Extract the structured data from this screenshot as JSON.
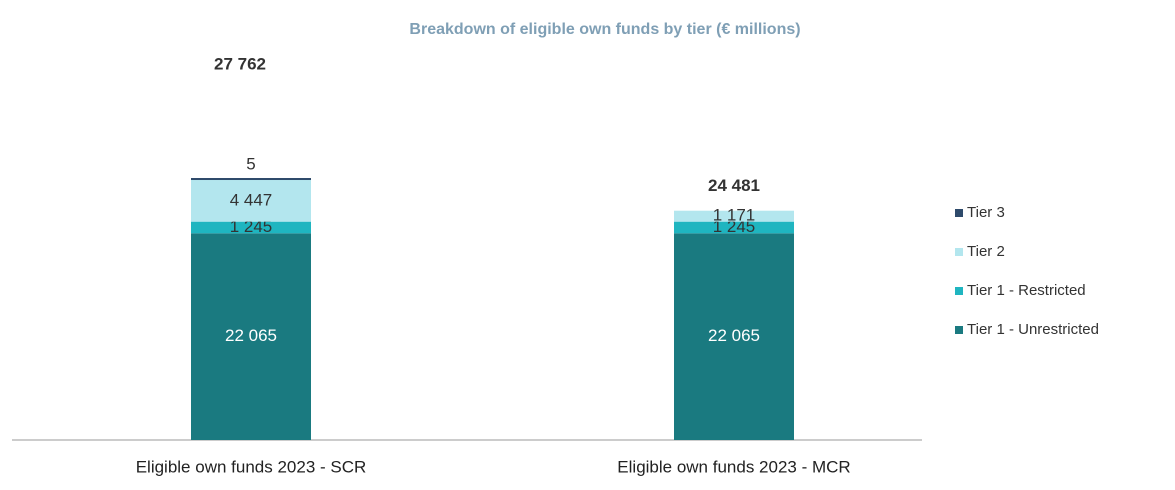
{
  "chart_data": {
    "type": "stacked_bar",
    "title": "Breakdown of eligible own funds by tier (€ millions)",
    "categories": [
      "Eligible own funds 2023 - SCR",
      "Eligible own funds 2023 - MCR"
    ],
    "series": [
      {
        "name": "Tier 1 - Unrestricted",
        "color": "#1a7a80",
        "values": [
          22065,
          22065
        ],
        "value_labels": [
          "22 065",
          "22 065"
        ]
      },
      {
        "name": "Tier 1 - Restricted",
        "color": "#1fb5c0",
        "values": [
          1245,
          1245
        ],
        "value_labels": [
          "1 245",
          "1 245"
        ]
      },
      {
        "name": "Tier 2",
        "color": "#b3e6ee",
        "values": [
          4447,
          1171
        ],
        "value_labels": [
          "4 447",
          "1 171"
        ]
      },
      {
        "name": "Tier 3",
        "color": "#2e4a6b",
        "values": [
          5,
          null
        ],
        "value_labels": [
          "5",
          null
        ]
      }
    ],
    "totals": [
      27762,
      24481
    ],
    "total_labels": [
      "27 762",
      "24 481"
    ],
    "ylim": [
      0,
      30000
    ],
    "legend": "right"
  }
}
